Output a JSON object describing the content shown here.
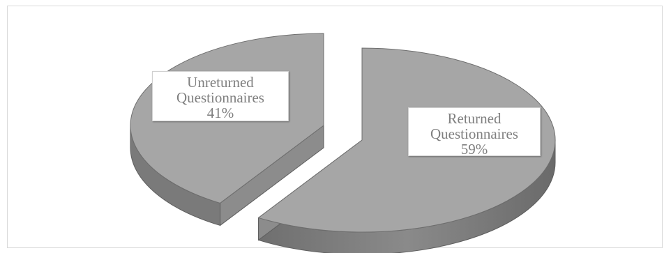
{
  "chart_data": {
    "type": "pie",
    "style": "3d-exploded",
    "title": "",
    "slices": [
      {
        "category": "Unreturned Questionnaires",
        "line1": "Unreturned",
        "line2": "Questionnaires",
        "percent": 41,
        "percent_label": "41%",
        "color": "#a6a6a6"
      },
      {
        "category": "Returned Questionnaires",
        "line1": "Returned",
        "line2": "Questionnaires",
        "percent": 59,
        "percent_label": "59%",
        "color": "#a6a6a6"
      }
    ],
    "legend": "none",
    "data_labels": "category-and-percent"
  }
}
